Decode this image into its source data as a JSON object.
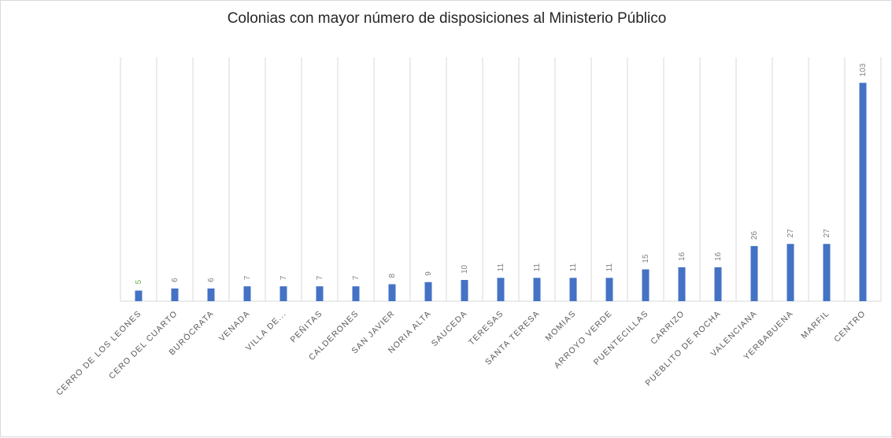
{
  "chart_data": {
    "type": "bar",
    "title": "Colonias con mayor número de disposiciones al Ministerio Público",
    "xlabel": "",
    "ylabel": "",
    "categories": [
      "CERRO DE LOS LEONES",
      "CERO DEL CUARTO",
      "BURÓCRATA",
      "VENADA",
      "VILLA DE...",
      "PEÑITAS",
      "CALDERONES",
      "SAN JAVIER",
      "NORIA ALTA",
      "SAUCEDA",
      "TERESAS",
      "SANTA TERESA",
      "MOMIAS",
      "ARROYO VERDE",
      "PUENTECILLAS",
      "CARRIZO",
      "PUEBLITO DE ROCHA",
      "VALENCIANA",
      "YERBABUENA",
      "MARFIL",
      "CENTRO"
    ],
    "values": [
      5,
      6,
      6,
      7,
      7,
      7,
      7,
      8,
      9,
      10,
      11,
      11,
      11,
      11,
      15,
      16,
      16,
      26,
      27,
      27,
      103
    ],
    "ylim": [
      0,
      115
    ],
    "grid": "vertical category lines",
    "legend": "none",
    "colors": {
      "bar": "#4472c4",
      "gridline": "#d9d9d9",
      "label": "#7f7f7f",
      "first_label": "#70ad47",
      "title": "#262626"
    }
  }
}
